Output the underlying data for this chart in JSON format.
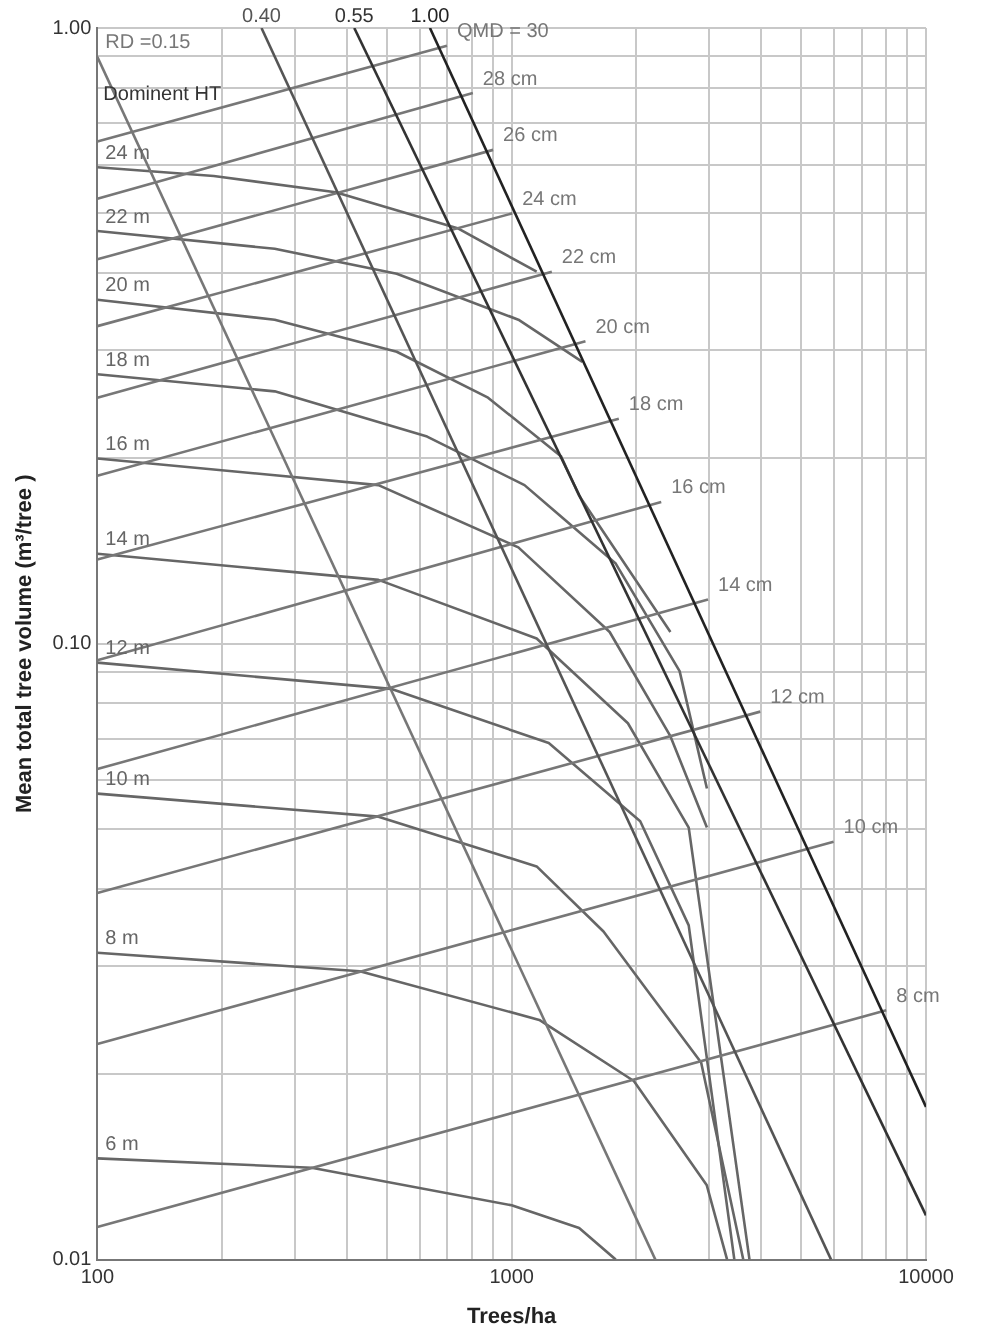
{
  "chart_data": {
    "type": "line",
    "xlabel": "Trees/ha",
    "ylabel": "Mean total tree volume (m³/tree )",
    "log": "xy",
    "grid": true,
    "legend": false,
    "marker": "none",
    "xlim": [
      100,
      10000
    ],
    "ylim": [
      0.01,
      1
    ],
    "xticks": [
      100,
      {
        "value": 200,
        "label": null
      },
      {
        "value": 300,
        "label": null
      },
      {
        "value": 400,
        "label": null
      },
      {
        "value": 500,
        "label": null
      },
      {
        "value": 600,
        "label": null
      },
      {
        "value": 700,
        "label": null
      },
      {
        "value": 800,
        "label": null
      },
      {
        "value": 900,
        "label": null
      },
      1000,
      {
        "value": 2000,
        "label": null
      },
      {
        "value": 3000,
        "label": null
      },
      {
        "value": 4000,
        "label": null
      },
      {
        "value": 5000,
        "label": null
      },
      {
        "value": 6000,
        "label": null
      },
      {
        "value": 7000,
        "label": null
      },
      {
        "value": 8000,
        "label": null
      },
      {
        "value": 9000,
        "label": null
      },
      10000
    ],
    "yticks": [
      {
        "value": 0.01,
        "label": "0.01"
      },
      {
        "value": 0.02,
        "label": null
      },
      {
        "value": 0.03,
        "label": null
      },
      {
        "value": 0.04,
        "label": null
      },
      {
        "value": 0.05,
        "label": null
      },
      {
        "value": 0.06,
        "label": null
      },
      {
        "value": 0.07,
        "label": null
      },
      {
        "value": 0.08,
        "label": null
      },
      {
        "value": 0.09,
        "label": null
      },
      {
        "value": 0.1,
        "label": "0.10"
      },
      {
        "value": 0.2,
        "label": null
      },
      {
        "value": 0.3,
        "label": null
      },
      {
        "value": 0.4,
        "label": null
      },
      {
        "value": 0.5,
        "label": null
      },
      {
        "value": 0.6,
        "label": null
      },
      {
        "value": 0.7,
        "label": null
      },
      {
        "value": 0.8,
        "label": null
      },
      {
        "value": 0.9,
        "label": null
      },
      {
        "value": 1,
        "label": "1.00"
      }
    ],
    "annotations": [
      "Dominent HT"
    ],
    "series": [
      {
        "name": "RD =0.15",
        "color": "#777777",
        "x": [
          100,
          2222
        ],
        "values": [
          0.898,
          0.01
        ]
      },
      {
        "name": "0.40",
        "color": "#555555",
        "x": [
          249,
          5900
        ],
        "values": [
          1,
          0.01
        ]
      },
      {
        "name": "0.55",
        "color": "#333333",
        "x": [
          417,
          10000
        ],
        "values": [
          1,
          0.0118
        ]
      },
      {
        "name": "1.00",
        "color": "#222222",
        "x": [
          635,
          10000
        ],
        "values": [
          1,
          0.0177
        ]
      },
      {
        "name": "QMD = 30",
        "color": "#777777",
        "x": [
          100,
          698
        ],
        "values": [
          0.654,
          0.936
        ]
      },
      {
        "name": "28 cm",
        "color": "#777777",
        "x": [
          100,
          806
        ],
        "values": [
          0.528,
          0.784
        ]
      },
      {
        "name": "26 cm",
        "color": "#777777",
        "x": [
          100,
          902
        ],
        "values": [
          0.421,
          0.634
        ]
      },
      {
        "name": "24 cm",
        "color": "#777777",
        "x": [
          100,
          1003
        ],
        "values": [
          0.328,
          0.5
        ]
      },
      {
        "name": "22 cm",
        "color": "#777777",
        "x": [
          100,
          1250
        ],
        "values": [
          0.251,
          0.402
        ]
      },
      {
        "name": "20 cm",
        "color": "#777777",
        "x": [
          100,
          1507
        ],
        "values": [
          0.1875,
          0.31
        ]
      },
      {
        "name": "18 cm",
        "color": "#777777",
        "x": [
          100,
          1814
        ],
        "values": [
          0.137,
          0.232
        ]
      },
      {
        "name": "16 cm",
        "color": "#777777",
        "x": [
          100,
          2296
        ],
        "values": [
          0.094,
          0.17
        ]
      },
      {
        "name": "14 cm",
        "color": "#777777",
        "x": [
          100,
          2978
        ],
        "values": [
          0.0626,
          0.118
        ]
      },
      {
        "name": "12 cm",
        "color": "#777777",
        "x": [
          100,
          3981
        ],
        "values": [
          0.0394,
          0.0776
        ]
      },
      {
        "name": "10 cm",
        "color": "#777777",
        "x": [
          100,
          5984
        ],
        "values": [
          0.0224,
          0.0477
        ]
      },
      {
        "name": "8 cm",
        "color": "#777777",
        "x": [
          100,
          8017
        ],
        "values": [
          0.0113,
          0.0254
        ]
      },
      {
        "name": "24 m",
        "color": "#666666",
        "x": [
          100,
          191,
          376,
          740,
          1149
        ],
        "values": [
          0.594,
          0.575,
          0.541,
          0.473,
          0.402
        ]
      },
      {
        "name": "22 m",
        "color": "#666666",
        "x": [
          100,
          268,
          528,
          1038,
          1481
        ],
        "values": [
          0.468,
          0.438,
          0.399,
          0.336,
          0.287
        ]
      },
      {
        "name": "20 m",
        "color": "#666666",
        "x": [
          100,
          268,
          528,
          877,
          1315,
          1455,
          2416
        ],
        "values": [
          0.362,
          0.336,
          0.298,
          0.251,
          0.2017,
          0.174,
          0.1045
        ]
      },
      {
        "name": "18 m",
        "color": "#666666",
        "x": [
          100,
          268,
          625,
          1074,
          1783,
          2543,
          2960
        ],
        "values": [
          0.274,
          0.257,
          0.217,
          0.181,
          0.135,
          0.0903,
          0.0582
        ]
      },
      {
        "name": "16 m",
        "color": "#666666",
        "x": [
          100,
          477,
          1038,
          1724,
          2416,
          2960
        ],
        "values": [
          0.2,
          0.181,
          0.1434,
          0.1045,
          0.0708,
          0.0503
        ]
      },
      {
        "name": "14 m",
        "color": "#666666",
        "x": [
          100,
          477,
          1149,
          1908,
          2675,
          3750
        ],
        "values": [
          0.14,
          0.127,
          0.102,
          0.0743,
          0.0503,
          0.01
        ]
      },
      {
        "name": "12 m",
        "color": "#666666",
        "x": [
          100,
          511,
          1229,
          2043,
          2675,
          3447
        ],
        "values": [
          0.0932,
          0.0845,
          0.069,
          0.0515,
          0.0349,
          0.01
        ]
      },
      {
        "name": "10 m",
        "color": "#666666",
        "x": [
          100,
          477,
          1149,
          1666,
          2183,
          2866,
          3622
        ],
        "values": [
          0.0571,
          0.0524,
          0.0435,
          0.0341,
          0.0267,
          0.0209,
          0.01
        ]
      },
      {
        "name": "8 m",
        "color": "#666666",
        "x": [
          100,
          430,
          1166,
          1972,
          2958,
          3311
        ],
        "values": [
          0.0315,
          0.0294,
          0.0245,
          0.0195,
          0.0132,
          0.01
        ]
      },
      {
        "name": "6 m",
        "color": "#666666",
        "x": [
          100,
          329,
          1000,
          1455,
          1783
        ],
        "values": [
          0.0146,
          0.0141,
          0.01225,
          0.01125,
          0.01
        ]
      }
    ]
  }
}
